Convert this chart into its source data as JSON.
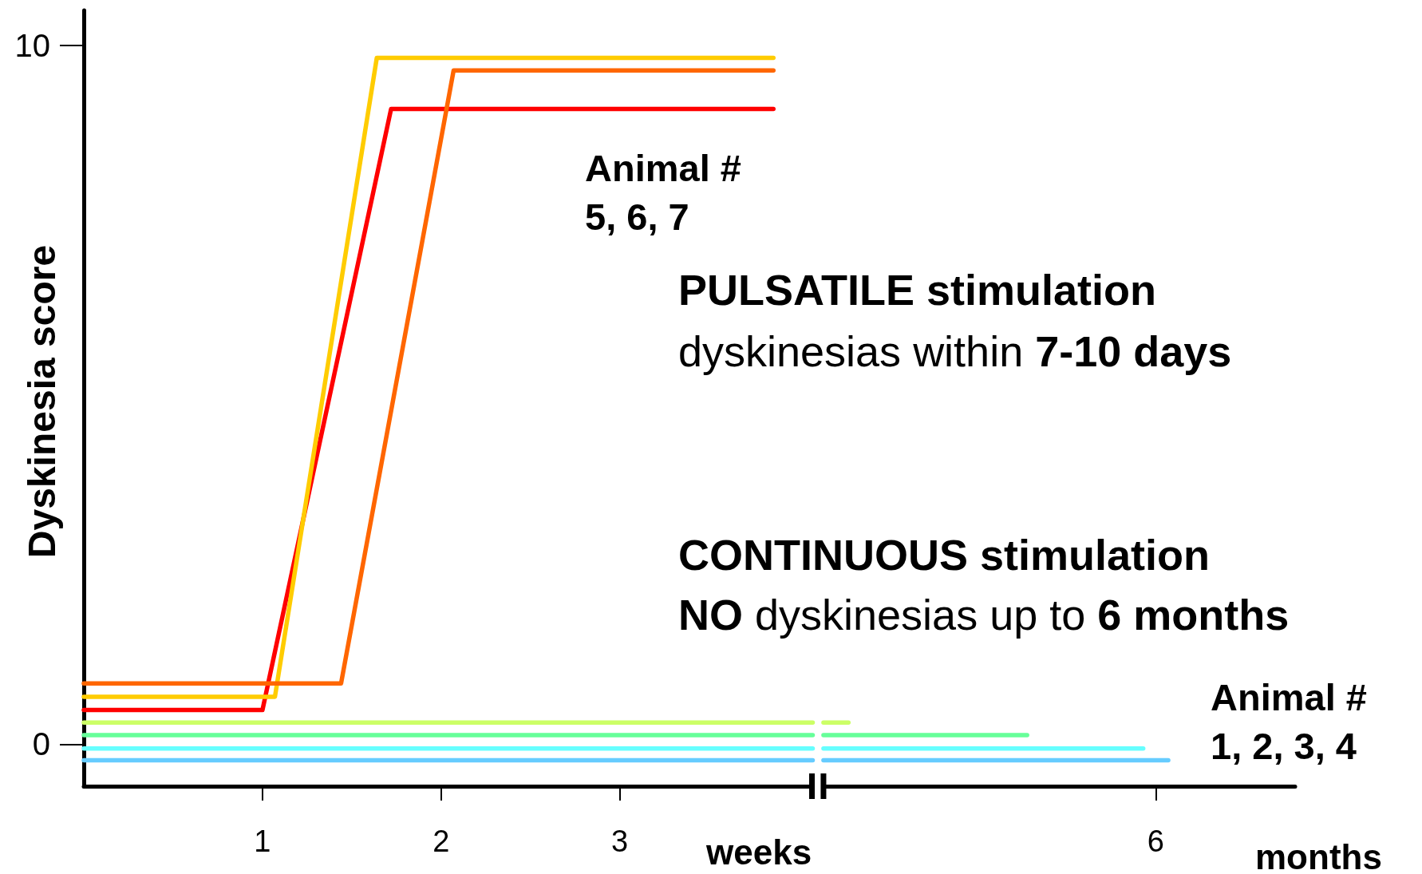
{
  "chart_data": {
    "type": "line",
    "ylabel": "Dyskinesia score",
    "xlabel": "weeks",
    "xlim": [
      0,
      6.78
    ],
    "xticks": [
      1,
      2,
      3,
      6
    ],
    "ylim": [
      -0.6,
      10.5
    ],
    "yticks": [
      0,
      10
    ],
    "grid": false,
    "marker": "none",
    "line_style": "solid",
    "series": [
      {
        "color": "#ff0000",
        "x": [
          0,
          1.0,
          1.72,
          3.86
        ],
        "values": [
          0.49,
          0.49,
          9.09,
          9.09
        ]
      },
      {
        "color": "#ffcc00",
        "x": [
          0,
          1.07,
          1.64,
          3.86
        ],
        "values": [
          0.68,
          0.68,
          9.82,
          9.82
        ]
      },
      {
        "color": "#ff6600",
        "x": [
          0,
          1.44,
          2.07,
          3.86
        ],
        "values": [
          0.87,
          0.87,
          9.64,
          9.64
        ]
      },
      {
        "color": "#ccff66",
        "x": [
          0,
          4.08,
          4.11,
          4.14,
          4.28
        ],
        "values": [
          0.31,
          0.31,
          null,
          0.31,
          0.31
        ]
      },
      {
        "color": "#66ff99",
        "x": [
          0,
          4.08,
          4.11,
          4.14,
          5.28
        ],
        "values": [
          0.13,
          0.13,
          null,
          0.13,
          0.13
        ]
      },
      {
        "color": "#66ffff",
        "x": [
          0,
          4.08,
          4.11,
          4.14,
          5.93
        ],
        "values": [
          -0.06,
          -0.06,
          null,
          -0.06,
          -0.06
        ]
      },
      {
        "color": "#66ccff",
        "x": [
          0,
          4.08,
          4.11,
          4.14,
          6.07
        ],
        "values": [
          -0.23,
          -0.23,
          null,
          -0.23,
          -0.23
        ]
      }
    ],
    "annotations": [
      "Animal #\n5, 6, 7",
      "PULSATILE stimulation",
      "dyskinesias within ",
      "7-10 days",
      "CONTINUOUS stimulation",
      "NO",
      " dyskinesias up to ",
      "6 months",
      "Animal #\n1, 2, 3, 4",
      "months"
    ]
  }
}
